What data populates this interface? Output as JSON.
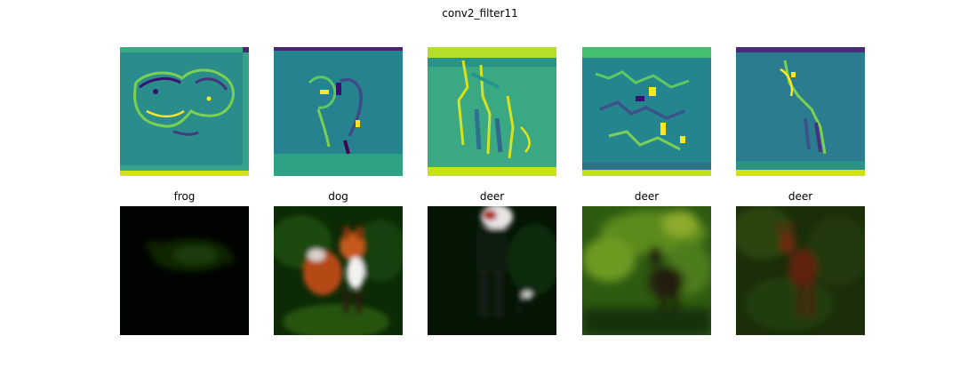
{
  "figure": {
    "title": "conv2_filter11"
  },
  "feature_maps": [
    {
      "subject": "frog-outline"
    },
    {
      "subject": "dog-outline"
    },
    {
      "subject": "standing-animal-outline"
    },
    {
      "subject": "textured-scene"
    },
    {
      "subject": "deer-outline"
    }
  ],
  "images": [
    {
      "label": "frog"
    },
    {
      "label": "dog"
    },
    {
      "label": "deer"
    },
    {
      "label": "deer"
    },
    {
      "label": "deer"
    }
  ],
  "colors": {
    "viridis_low": "#440154",
    "viridis_mid": "#21918c",
    "viridis_high": "#fde725",
    "background": "#ffffff"
  }
}
